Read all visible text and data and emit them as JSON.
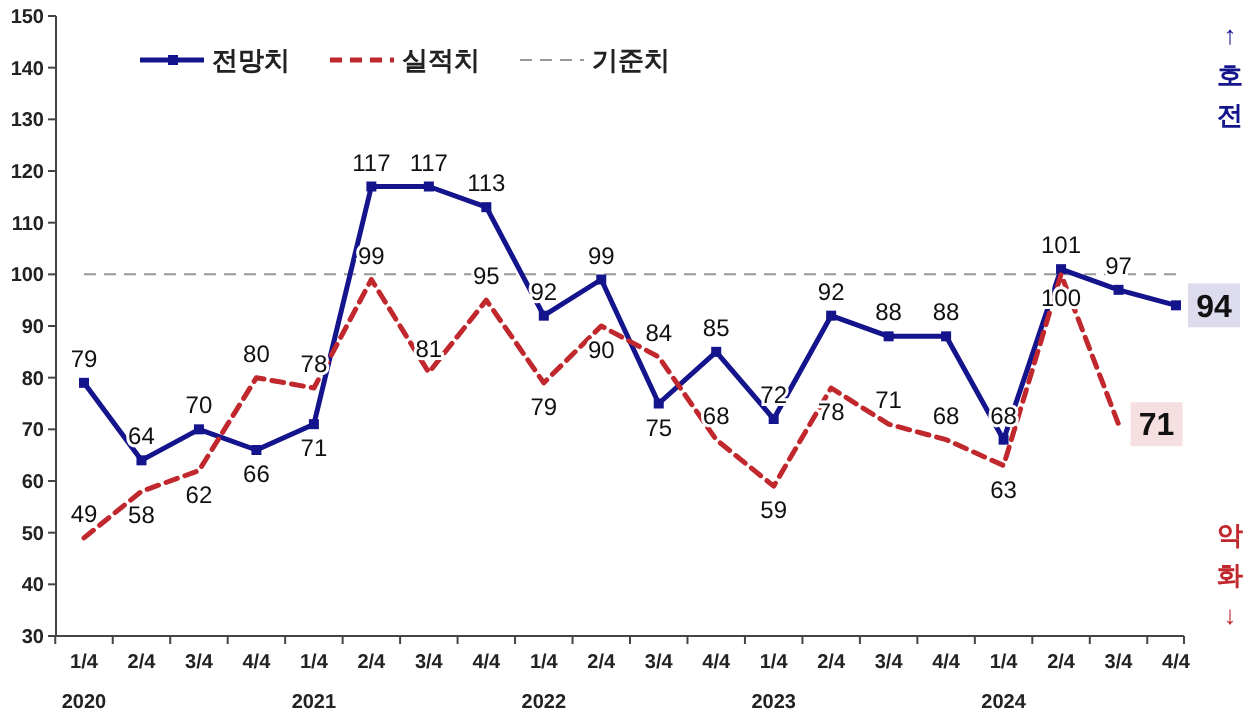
{
  "chart_data": {
    "type": "line",
    "categories": [
      "1/4\n2020",
      "2/4",
      "3/4",
      "4/4",
      "1/4\n2021",
      "2/4",
      "3/4",
      "4/4",
      "1/4\n2022",
      "2/4",
      "3/4",
      "4/4",
      "1/4\n2023",
      "2/4",
      "3/4",
      "4/4",
      "1/4\n2024",
      "2/4",
      "3/4",
      "4/4"
    ],
    "series": [
      {
        "name": "전망치",
        "color": "#14148c",
        "marker": "square",
        "line_style": "solid",
        "values": [
          79,
          64,
          70,
          66,
          71,
          117,
          117,
          113,
          92,
          99,
          75,
          85,
          72,
          92,
          88,
          88,
          68,
          101,
          97,
          94
        ]
      },
      {
        "name": "실적치",
        "color": "#c0282d",
        "marker": "none",
        "line_style": "dashed",
        "values": [
          49,
          58,
          62,
          80,
          78,
          99,
          81,
          95,
          79,
          90,
          84,
          68,
          59,
          78,
          71,
          68,
          63,
          100,
          71,
          null
        ]
      }
    ],
    "ylim": [
      30,
      150
    ],
    "yticks": [
      30,
      40,
      50,
      60,
      70,
      80,
      90,
      100,
      110,
      120,
      130,
      140,
      150
    ],
    "ref_lines": [
      {
        "axis": "y",
        "value": 100,
        "label": "기준치",
        "color": "#999999",
        "line_style": "dashed"
      }
    ],
    "data_labels": true,
    "grid": false,
    "legend": "top left",
    "annotations": [
      "↑ 호전",
      "악화 ↓"
    ]
  }
}
